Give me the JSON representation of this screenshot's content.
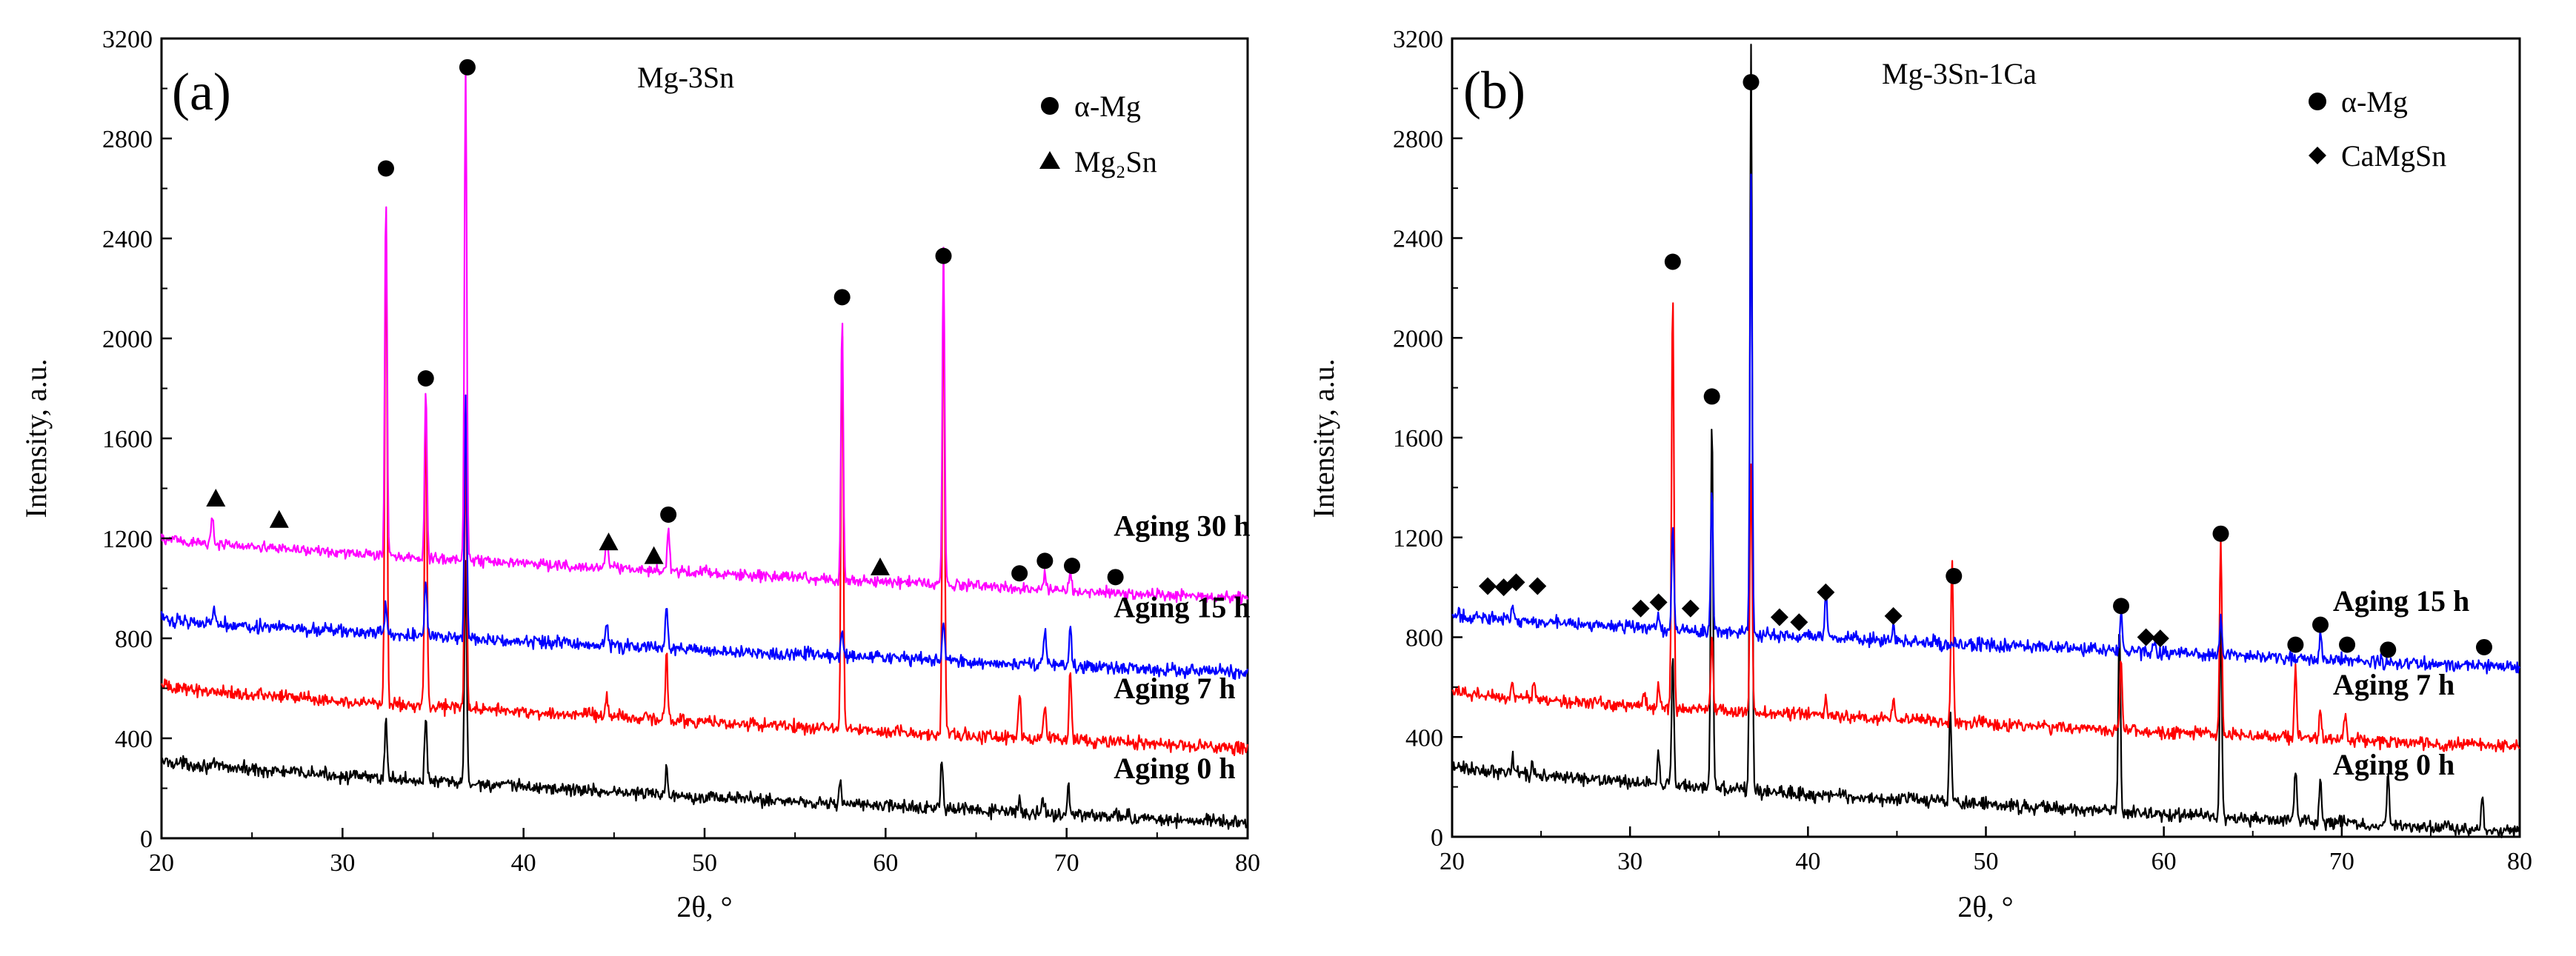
{
  "chart_data": [
    {
      "type": "line",
      "panel_label": "(a)",
      "title": "Mg-3Sn",
      "xlabel": "2θ, °",
      "ylabel": "Intensity, a.u.",
      "xlim": [
        20,
        80
      ],
      "ylim": [
        0,
        3200
      ],
      "xticks": [
        "20",
        "30",
        "40",
        "50",
        "60",
        "70",
        "80"
      ],
      "yticks": [
        "0",
        "400",
        "800",
        "1200",
        "1600",
        "2000",
        "2400",
        "2800",
        "3200"
      ],
      "legend": [
        {
          "marker": "circle",
          "label": "α-Mg"
        },
        {
          "marker": "triangle",
          "label": "Mg₂Sn"
        }
      ],
      "series": [
        {
          "name": "Aging 0 h",
          "color": "#000000",
          "start": 310,
          "end": 60,
          "noise": 16,
          "peaks": [
            [
              32.4,
              250
            ],
            [
              34.6,
              260
            ],
            [
              36.8,
              880
            ],
            [
              47.9,
              110
            ],
            [
              57.5,
              90
            ],
            [
              63.1,
              200
            ],
            [
              67.4,
              50
            ],
            [
              68.7,
              60
            ],
            [
              70.1,
              130
            ],
            [
              72.7,
              40
            ]
          ]
        },
        {
          "name": "Aging 7 h",
          "color": "#ff0000",
          "start": 610,
          "end": 360,
          "noise": 16,
          "peaks": [
            [
              32.4,
              2020
            ],
            [
              34.6,
              1250
            ],
            [
              36.8,
              1050
            ],
            [
              44.6,
              90
            ],
            [
              47.9,
              260
            ],
            [
              57.6,
              1640
            ],
            [
              63.2,
              1880
            ],
            [
              67.4,
              180
            ],
            [
              68.8,
              140
            ],
            [
              70.2,
              280
            ]
          ]
        },
        {
          "name": "Aging 15 h",
          "color": "#0000ff",
          "start": 880,
          "end": 660,
          "noise": 16,
          "peaks": [
            [
              22.9,
              70
            ],
            [
              32.4,
              120
            ],
            [
              34.6,
              220
            ],
            [
              36.8,
              970
            ],
            [
              44.6,
              90
            ],
            [
              47.9,
              180
            ],
            [
              57.6,
              100
            ],
            [
              63.2,
              160
            ],
            [
              68.8,
              140
            ],
            [
              70.2,
              170
            ]
          ]
        },
        {
          "name": "Aging 30 h",
          "color": "#ff00ff",
          "start": 1200,
          "end": 960,
          "noise": 14,
          "peaks": [
            [
              22.8,
              110
            ],
            [
              32.4,
              1430
            ],
            [
              34.6,
              680
            ],
            [
              36.8,
              1990
            ],
            [
              44.6,
              130
            ],
            [
              48.0,
              180
            ],
            [
              57.6,
              1030
            ],
            [
              63.2,
              1340
            ],
            [
              68.8,
              70
            ],
            [
              70.2,
              70
            ]
          ]
        }
      ],
      "annotations": [
        {
          "marker": "triangle",
          "x": 23.0,
          "y": 1360
        },
        {
          "marker": "triangle",
          "x": 26.5,
          "y": 1275
        },
        {
          "marker": "circle",
          "x": 32.4,
          "y": 2680
        },
        {
          "marker": "circle",
          "x": 34.6,
          "y": 1840
        },
        {
          "marker": "circle",
          "x": 36.9,
          "y": 3085
        },
        {
          "marker": "triangle",
          "x": 44.7,
          "y": 1185
        },
        {
          "marker": "triangle",
          "x": 47.2,
          "y": 1130
        },
        {
          "marker": "circle",
          "x": 48.0,
          "y": 1295
        },
        {
          "marker": "circle",
          "x": 57.6,
          "y": 2165
        },
        {
          "marker": "triangle",
          "x": 59.7,
          "y": 1085
        },
        {
          "marker": "circle",
          "x": 63.2,
          "y": 2330
        },
        {
          "marker": "circle",
          "x": 67.4,
          "y": 1060
        },
        {
          "marker": "circle",
          "x": 68.8,
          "y": 1110
        },
        {
          "marker": "circle",
          "x": 70.3,
          "y": 1090
        },
        {
          "marker": "circle",
          "x": 72.7,
          "y": 1045
        }
      ],
      "series_labels": [
        {
          "text": "Aging 30 h",
          "x": 72.6,
          "y": 1210
        },
        {
          "text": "Aging 15 h",
          "x": 72.6,
          "y": 885
        },
        {
          "text": "Aging 7 h",
          "x": 72.6,
          "y": 560
        },
        {
          "text": "Aging 0 h",
          "x": 72.6,
          "y": 240
        }
      ]
    },
    {
      "type": "line",
      "panel_label": "(b)",
      "title": "Mg-3Sn-1Ca",
      "xlabel": "2θ, °",
      "ylabel": "Intensity, a.u.",
      "xlim": [
        20,
        80
      ],
      "ylim": [
        0,
        3200
      ],
      "xticks": [
        "20",
        "30",
        "40",
        "50",
        "60",
        "70",
        "80"
      ],
      "yticks": [
        "0",
        "400",
        "800",
        "1200",
        "1600",
        "2000",
        "2400",
        "2800",
        "3200"
      ],
      "legend": [
        {
          "marker": "circle",
          "label": "α-Mg"
        },
        {
          "marker": "diamond",
          "label": "CaMgSn"
        }
      ],
      "series": [
        {
          "name": "Aging 0 h",
          "color": "#000000",
          "start": 280,
          "end": 20,
          "noise": 16,
          "peaks": [
            [
              23.4,
              60
            ],
            [
              24.5,
              50
            ],
            [
              31.6,
              130
            ],
            [
              32.4,
              510
            ],
            [
              34.6,
              1490
            ],
            [
              36.8,
              2980
            ],
            [
              48.0,
              380
            ],
            [
              57.5,
              760
            ],
            [
              63.2,
              780
            ],
            [
              67.4,
              220
            ],
            [
              68.8,
              170
            ],
            [
              72.6,
              200
            ],
            [
              77.9,
              140
            ]
          ]
        },
        {
          "name": "Aging 7 h",
          "color": "#ff0000",
          "start": 580,
          "end": 360,
          "noise": 16,
          "peaks": [
            [
              23.4,
              70
            ],
            [
              24.6,
              60
            ],
            [
              30.8,
              50
            ],
            [
              31.6,
              80
            ],
            [
              32.4,
              1690
            ],
            [
              34.6,
              290
            ],
            [
              36.8,
              1000
            ],
            [
              41.0,
              70
            ],
            [
              44.8,
              70
            ],
            [
              48.1,
              660
            ],
            [
              57.6,
              280
            ],
            [
              63.2,
              790
            ],
            [
              67.4,
              280
            ],
            [
              68.8,
              110
            ],
            [
              70.2,
              110
            ]
          ]
        },
        {
          "name": "Aging 15 h",
          "color": "#0000ff",
          "start": 890,
          "end": 680,
          "noise": 16,
          "peaks": [
            [
              23.4,
              60
            ],
            [
              31.6,
              60
            ],
            [
              32.4,
              420
            ],
            [
              34.6,
              570
            ],
            [
              36.8,
              1840
            ],
            [
              41.0,
              190
            ],
            [
              44.8,
              60
            ],
            [
              57.6,
              150
            ],
            [
              59.5,
              40
            ],
            [
              63.2,
              150
            ],
            [
              68.8,
              110
            ]
          ]
        }
      ],
      "annotations": [
        {
          "marker": "diamond",
          "x": 22.0,
          "y": 1005
        },
        {
          "marker": "diamond",
          "x": 22.9,
          "y": 1000
        },
        {
          "marker": "diamond",
          "x": 23.6,
          "y": 1020
        },
        {
          "marker": "diamond",
          "x": 24.8,
          "y": 1005
        },
        {
          "marker": "diamond",
          "x": 30.6,
          "y": 915
        },
        {
          "marker": "diamond",
          "x": 31.6,
          "y": 940
        },
        {
          "marker": "circle",
          "x": 32.4,
          "y": 2305
        },
        {
          "marker": "diamond",
          "x": 33.4,
          "y": 915
        },
        {
          "marker": "circle",
          "x": 34.6,
          "y": 1765
        },
        {
          "marker": "circle",
          "x": 36.8,
          "y": 3025
        },
        {
          "marker": "diamond",
          "x": 38.4,
          "y": 880
        },
        {
          "marker": "diamond",
          "x": 39.5,
          "y": 860
        },
        {
          "marker": "diamond",
          "x": 41.0,
          "y": 980
        },
        {
          "marker": "diamond",
          "x": 44.8,
          "y": 885
        },
        {
          "marker": "circle",
          "x": 48.2,
          "y": 1045
        },
        {
          "marker": "circle",
          "x": 57.6,
          "y": 925
        },
        {
          "marker": "diamond",
          "x": 59.0,
          "y": 800
        },
        {
          "marker": "diamond",
          "x": 59.8,
          "y": 795
        },
        {
          "marker": "circle",
          "x": 63.2,
          "y": 1215
        },
        {
          "marker": "circle",
          "x": 67.4,
          "y": 770
        },
        {
          "marker": "circle",
          "x": 68.8,
          "y": 850
        },
        {
          "marker": "circle",
          "x": 70.3,
          "y": 770
        },
        {
          "marker": "circle",
          "x": 72.6,
          "y": 750
        },
        {
          "marker": "circle",
          "x": 78.0,
          "y": 760
        }
      ],
      "series_labels": [
        {
          "text": "Aging 15 h",
          "x": 69.5,
          "y": 905
        },
        {
          "text": "Aging 7 h",
          "x": 69.5,
          "y": 570
        },
        {
          "text": "Aging 0 h",
          "x": 69.5,
          "y": 250
        }
      ]
    }
  ]
}
